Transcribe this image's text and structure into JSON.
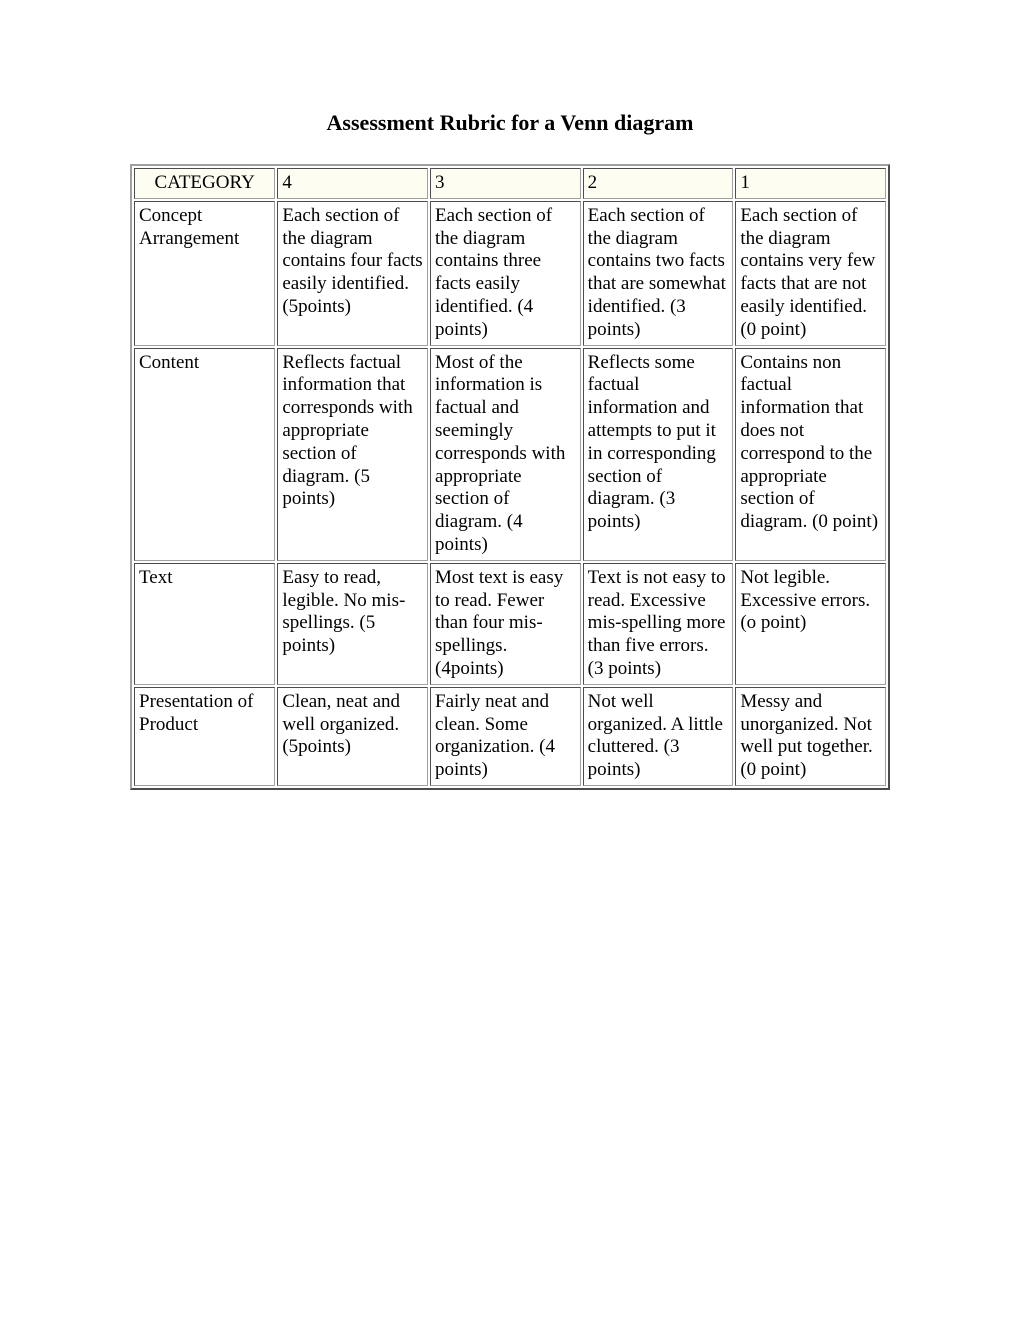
{
  "title": "Assessment Rubric for a Venn diagram",
  "table": {
    "header": {
      "category": "CATEGORY",
      "col4": "4",
      "col3": "3",
      "col2": "2",
      "col1": "1"
    },
    "rows": [
      {
        "category": "Concept Arrangement",
        "c4": "Each section of the diagram contains four facts easily identified. (5points)",
        "c3": "Each section of the diagram contains three facts easily identified. (4 points)",
        "c2": "Each section of the diagram contains two facts that are somewhat identified. (3 points)",
        "c1": "Each section of the diagram contains very few facts that are not easily identified. (0 point)"
      },
      {
        "category": "Content",
        "c4": "Reflects factual information that corresponds with appropriate section of diagram. (5 points)",
        "c3": "Most of the information is factual and seemingly corresponds with appropriate section of diagram. (4 points)",
        "c2": "Reflects some factual information and attempts to put it in corresponding section of diagram. (3 points)",
        "c1": "Contains non factual information that does not correspond to the appropriate section of diagram. (0 point)"
      },
      {
        "category": "Text",
        "c4": "Easy to read, legible. No mis-spellings. (5 points)",
        "c3": "Most text is easy to read. Fewer than four mis-spellings. (4points)",
        "c2": "Text is not easy to read. Excessive mis-spelling more than five errors. (3 points)",
        "c1": "Not legible. Excessive errors. (o point)"
      },
      {
        "category": "Presentation of Product",
        "c4": "Clean, neat and well organized. (5points)",
        "c3": "Fairly neat and clean. Some organization. (4 points)",
        "c2": "Not well organized. A little cluttered. (3 points)",
        "c1": "Messy and unorganized. Not well put together. (0 point)"
      }
    ]
  },
  "style": {
    "background_color": "#ffffff",
    "header_bg": "#fdfdf2",
    "text_color": "#000000",
    "border_color": "#a0a0a0",
    "title_fontsize": 22,
    "cell_fontsize": 19,
    "font_family": "Times New Roman"
  }
}
